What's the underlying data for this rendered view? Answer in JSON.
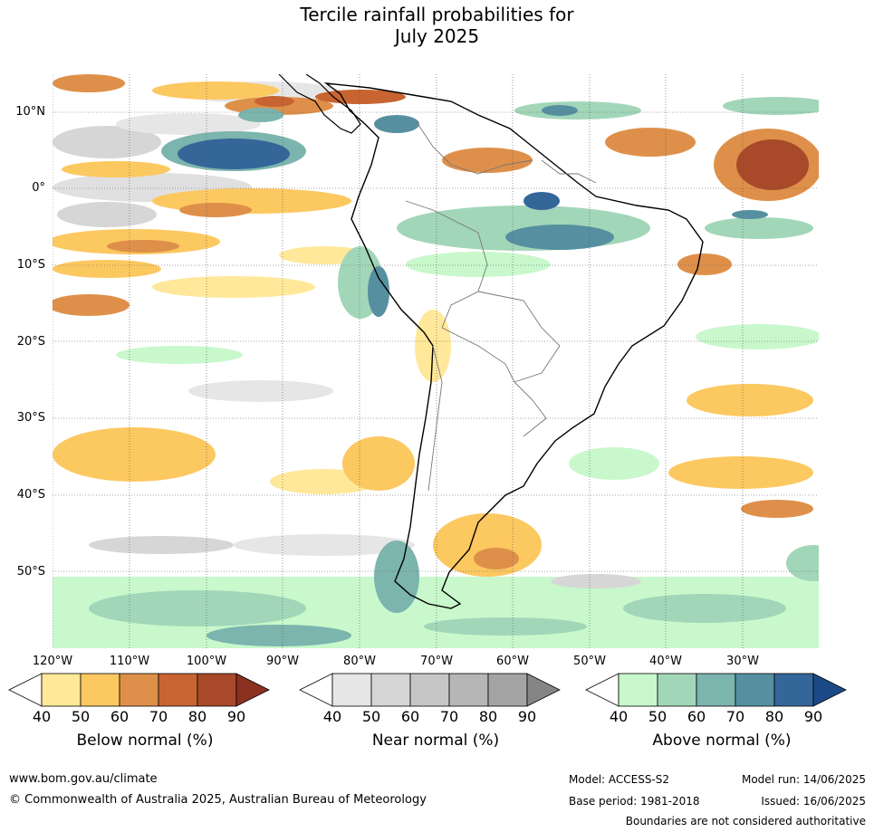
{
  "title": {
    "line1": "Tercile rainfall probabilities for",
    "line2": "July 2025"
  },
  "map": {
    "lat_labels": [
      "10°N",
      "0°",
      "10°S",
      "20°S",
      "30°S",
      "40°S",
      "50°S"
    ],
    "lon_labels": [
      "120°W",
      "110°W",
      "100°W",
      "90°W",
      "80°W",
      "70°W",
      "60°W",
      "50°W",
      "40°W",
      "30°W"
    ]
  },
  "colorbars": [
    {
      "title": "Below normal (%)",
      "ticks": [
        "40",
        "50",
        "60",
        "70",
        "80",
        "90"
      ],
      "colors": [
        "#ffffff",
        "#ffe89a",
        "#fcc860",
        "#de904a",
        "#c86432",
        "#a84a2a",
        "#8c3020"
      ]
    },
    {
      "title": "Near normal (%)",
      "ticks": [
        "40",
        "50",
        "60",
        "70",
        "80",
        "90"
      ],
      "colors": [
        "#ffffff",
        "#e6e6e6",
        "#d6d6d6",
        "#c6c6c6",
        "#b6b6b6",
        "#a4a4a4",
        "#858585"
      ]
    },
    {
      "title": "Above normal (%)",
      "ticks": [
        "40",
        "50",
        "60",
        "70",
        "80",
        "90"
      ],
      "colors": [
        "#ffffff",
        "#c8f8cc",
        "#a2d6b8",
        "#7cb4ae",
        "#5690a0",
        "#34669a",
        "#1b4a86"
      ]
    }
  ],
  "footer": {
    "website": "www.bom.gov.au/climate",
    "copyright": "© Commonwealth of Australia 2025, Australian Bureau of Meteorology",
    "model": "Model: ACCESS-S2",
    "base_period": "Base period: 1981-2018",
    "model_run": "Model run: 14/06/2025",
    "issued": "Issued: 16/06/2025",
    "boundaries": "Boundaries are not considered authoritative"
  }
}
